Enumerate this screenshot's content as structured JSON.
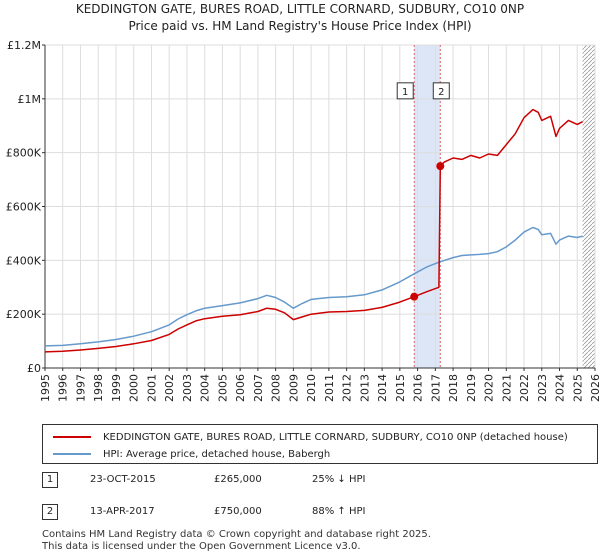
{
  "title_line1": "KEDDINGTON GATE, BURES ROAD, LITTLE CORNARD, SUDBURY, CO10 0NP",
  "title_line2": "Price paid vs. HM Land Registry's House Price Index (HPI)",
  "chart_data": {
    "type": "line",
    "title": "KEDDINGTON GATE, BURES ROAD, LITTLE CORNARD, SUDBURY, CO10 0NP — Price paid vs. HM Land Registry's House Price Index (HPI)",
    "xlim": [
      1995,
      2026
    ],
    "ylim": [
      0,
      1200000
    ],
    "x_ticks": [
      "1995",
      "1996",
      "1997",
      "1998",
      "1999",
      "2000",
      "2001",
      "2002",
      "2003",
      "2004",
      "2005",
      "2006",
      "2007",
      "2008",
      "2009",
      "2010",
      "2011",
      "2012",
      "2013",
      "2014",
      "2015",
      "2016",
      "2017",
      "2018",
      "2019",
      "2020",
      "2021",
      "2022",
      "2023",
      "2024",
      "2025",
      "2026"
    ],
    "y_ticks": [
      {
        "value": 0,
        "label": "£0"
      },
      {
        "value": 200000,
        "label": "£200K"
      },
      {
        "value": 400000,
        "label": "£400K"
      },
      {
        "value": 600000,
        "label": "£600K"
      },
      {
        "value": 800000,
        "label": "£800K"
      },
      {
        "value": 1000000,
        "label": "£1M"
      },
      {
        "value": 1200000,
        "label": "£1.2M"
      }
    ],
    "grid": true,
    "shaded_band": {
      "from": 2015.81,
      "to": 2017.28,
      "color": "#dde6f7"
    },
    "future_hatch_from": 2025.3,
    "series": [
      {
        "name": "KEDDINGTON GATE, BURES ROAD, LITTLE CORNARD, SUDBURY, CO10 0NP (detached house)",
        "color": "#cc0000",
        "points": [
          [
            1995,
            60000
          ],
          [
            1996,
            62000
          ],
          [
            1997,
            67000
          ],
          [
            1998,
            73000
          ],
          [
            1999,
            80000
          ],
          [
            2000,
            90000
          ],
          [
            2001,
            102000
          ],
          [
            2002,
            125000
          ],
          [
            2002.5,
            145000
          ],
          [
            2003,
            160000
          ],
          [
            2003.5,
            175000
          ],
          [
            2004,
            183000
          ],
          [
            2005,
            192000
          ],
          [
            2006,
            198000
          ],
          [
            2007,
            210000
          ],
          [
            2007.5,
            222000
          ],
          [
            2008,
            218000
          ],
          [
            2008.5,
            205000
          ],
          [
            2009,
            180000
          ],
          [
            2009.5,
            190000
          ],
          [
            2010,
            200000
          ],
          [
            2011,
            208000
          ],
          [
            2012,
            210000
          ],
          [
            2013,
            214000
          ],
          [
            2014,
            225000
          ],
          [
            2015,
            245000
          ],
          [
            2015.81,
            265000
          ],
          [
            2016.5,
            283000
          ],
          [
            2017.2,
            300000
          ],
          [
            2017.28,
            750000
          ],
          [
            2017.5,
            765000
          ],
          [
            2018,
            780000
          ],
          [
            2018.5,
            775000
          ],
          [
            2019,
            790000
          ],
          [
            2019.5,
            780000
          ],
          [
            2020,
            795000
          ],
          [
            2020.5,
            790000
          ],
          [
            2021,
            830000
          ],
          [
            2021.5,
            870000
          ],
          [
            2022,
            930000
          ],
          [
            2022.5,
            960000
          ],
          [
            2022.8,
            950000
          ],
          [
            2023,
            920000
          ],
          [
            2023.5,
            935000
          ],
          [
            2023.8,
            860000
          ],
          [
            2024,
            890000
          ],
          [
            2024.5,
            920000
          ],
          [
            2025,
            905000
          ],
          [
            2025.3,
            915000
          ]
        ]
      },
      {
        "name": "HPI: Average price, detached house, Babergh",
        "color": "#6699cc",
        "points": [
          [
            1995,
            82000
          ],
          [
            1996,
            84000
          ],
          [
            1997,
            90000
          ],
          [
            1998,
            97000
          ],
          [
            1999,
            106000
          ],
          [
            2000,
            118000
          ],
          [
            2001,
            135000
          ],
          [
            2002,
            160000
          ],
          [
            2002.5,
            182000
          ],
          [
            2003,
            198000
          ],
          [
            2003.5,
            212000
          ],
          [
            2004,
            222000
          ],
          [
            2005,
            232000
          ],
          [
            2006,
            242000
          ],
          [
            2007,
            258000
          ],
          [
            2007.5,
            270000
          ],
          [
            2008,
            262000
          ],
          [
            2008.5,
            245000
          ],
          [
            2009,
            222000
          ],
          [
            2009.5,
            240000
          ],
          [
            2010,
            255000
          ],
          [
            2011,
            262000
          ],
          [
            2012,
            265000
          ],
          [
            2013,
            272000
          ],
          [
            2014,
            290000
          ],
          [
            2015,
            320000
          ],
          [
            2015.81,
            350000
          ],
          [
            2016.5,
            375000
          ],
          [
            2017.28,
            395000
          ],
          [
            2018,
            410000
          ],
          [
            2018.5,
            418000
          ],
          [
            2019,
            420000
          ],
          [
            2019.5,
            422000
          ],
          [
            2020,
            425000
          ],
          [
            2020.5,
            432000
          ],
          [
            2021,
            450000
          ],
          [
            2021.5,
            475000
          ],
          [
            2022,
            505000
          ],
          [
            2022.5,
            522000
          ],
          [
            2022.8,
            515000
          ],
          [
            2023,
            495000
          ],
          [
            2023.5,
            500000
          ],
          [
            2023.8,
            460000
          ],
          [
            2024,
            475000
          ],
          [
            2024.5,
            490000
          ],
          [
            2025,
            485000
          ],
          [
            2025.3,
            490000
          ]
        ]
      }
    ],
    "sales": [
      {
        "label": "1",
        "x": 2015.81,
        "value": 265000
      },
      {
        "label": "2",
        "x": 2017.28,
        "value": 750000
      }
    ]
  },
  "legend": {
    "items": [
      {
        "label": "KEDDINGTON GATE, BURES ROAD, LITTLE CORNARD, SUDBURY, CO10 0NP (detached house)",
        "color": "#cc0000"
      },
      {
        "label": "HPI: Average price, detached house, Babergh",
        "color": "#6699cc"
      }
    ]
  },
  "sales_table": [
    {
      "num": "1",
      "date": "23-OCT-2015",
      "price": "£265,000",
      "hpi": "25% ↓ HPI"
    },
    {
      "num": "2",
      "date": "13-APR-2017",
      "price": "£750,000",
      "hpi": "88% ↑ HPI"
    }
  ],
  "footer": {
    "line1": "Contains HM Land Registry data © Crown copyright and database right 2025.",
    "line2": "This data is licensed under the Open Government Licence v3.0."
  }
}
